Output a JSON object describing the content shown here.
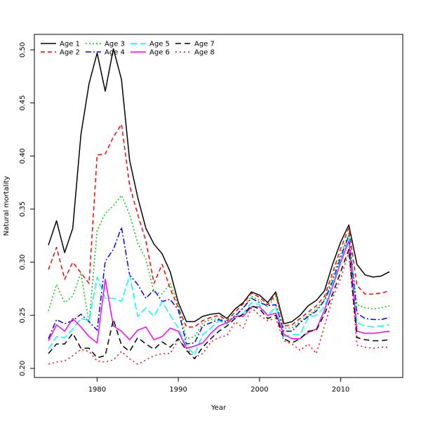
{
  "chart_data": {
    "type": "line",
    "title": "",
    "xlabel": "Year",
    "ylabel": "Natural mortality",
    "xlim": [
      1974,
      2016
    ],
    "ylim": [
      0.2,
      0.5
    ],
    "x_ticks": [
      1980,
      1990,
      2000,
      2010
    ],
    "y_ticks": [
      0.2,
      0.25,
      0.3,
      0.35,
      0.4,
      0.45,
      0.5
    ],
    "grid": false,
    "legend_position": "top-left",
    "x": [
      1974,
      1975,
      1976,
      1977,
      1978,
      1979,
      1980,
      1981,
      1982,
      1983,
      1984,
      1985,
      1986,
      1987,
      1988,
      1989,
      1990,
      1991,
      1992,
      1993,
      1994,
      1995,
      1996,
      1997,
      1998,
      1999,
      2000,
      2001,
      2002,
      2003,
      2004,
      2005,
      2006,
      2007,
      2008,
      2009,
      2010,
      2011,
      2012,
      2013,
      2014,
      2015,
      2016
    ],
    "series": [
      {
        "name": "Age 1",
        "color": "#000000",
        "dash": "solid",
        "values": [
          0.316,
          0.339,
          0.309,
          0.332,
          0.42,
          0.468,
          0.497,
          0.461,
          0.501,
          0.472,
          0.396,
          0.361,
          0.332,
          0.317,
          0.308,
          0.291,
          0.262,
          0.244,
          0.244,
          0.249,
          0.251,
          0.252,
          0.247,
          0.256,
          0.262,
          0.272,
          0.269,
          0.262,
          0.272,
          0.242,
          0.244,
          0.25,
          0.259,
          0.264,
          0.273,
          0.298,
          0.319,
          0.335,
          0.298,
          0.288,
          0.286,
          0.287,
          0.291
        ]
      },
      {
        "name": "Age 2",
        "color": "#FF0000",
        "dash": "6,4",
        "values": [
          0.293,
          0.314,
          0.284,
          0.3,
          0.29,
          0.28,
          0.401,
          0.402,
          0.418,
          0.43,
          0.372,
          0.345,
          0.32,
          0.28,
          0.298,
          0.275,
          0.257,
          0.239,
          0.239,
          0.245,
          0.248,
          0.25,
          0.245,
          0.253,
          0.261,
          0.271,
          0.267,
          0.26,
          0.27,
          0.24,
          0.241,
          0.247,
          0.253,
          0.259,
          0.268,
          0.29,
          0.313,
          0.332,
          0.278,
          0.27,
          0.27,
          0.271,
          0.273
        ]
      },
      {
        "name": "Age 3",
        "color": "#00CD00",
        "dash": "2,3",
        "values": [
          0.254,
          0.279,
          0.262,
          0.268,
          0.29,
          0.243,
          0.33,
          0.346,
          0.353,
          0.363,
          0.345,
          0.318,
          0.303,
          0.272,
          0.27,
          0.28,
          0.26,
          0.228,
          0.23,
          0.243,
          0.246,
          0.247,
          0.244,
          0.25,
          0.257,
          0.268,
          0.264,
          0.258,
          0.268,
          0.238,
          0.238,
          0.244,
          0.25,
          0.256,
          0.265,
          0.286,
          0.308,
          0.327,
          0.26,
          0.257,
          0.256,
          0.257,
          0.259
        ]
      },
      {
        "name": "Age 4",
        "color": "#0000FF",
        "dash": "8,3,2,3",
        "values": [
          0.228,
          0.246,
          0.242,
          0.245,
          0.251,
          0.244,
          0.236,
          0.301,
          0.312,
          0.333,
          0.288,
          0.279,
          0.266,
          0.274,
          0.263,
          0.265,
          0.255,
          0.223,
          0.224,
          0.24,
          0.243,
          0.246,
          0.243,
          0.249,
          0.257,
          0.266,
          0.262,
          0.259,
          0.26,
          0.235,
          0.235,
          0.243,
          0.249,
          0.254,
          0.264,
          0.282,
          0.305,
          0.325,
          0.252,
          0.247,
          0.246,
          0.246,
          0.248
        ]
      },
      {
        "name": "Age 5",
        "color": "#00FFFF",
        "dash": "10,4",
        "values": [
          0.218,
          0.23,
          0.229,
          0.237,
          0.247,
          0.245,
          0.286,
          0.266,
          0.266,
          0.263,
          0.288,
          0.249,
          0.257,
          0.249,
          0.263,
          0.25,
          0.238,
          0.221,
          0.213,
          0.232,
          0.238,
          0.245,
          0.242,
          0.248,
          0.252,
          0.262,
          0.26,
          0.25,
          0.258,
          0.23,
          0.232,
          0.232,
          0.248,
          0.25,
          0.258,
          0.28,
          0.302,
          0.323,
          0.243,
          0.24,
          0.239,
          0.24,
          0.241
        ]
      },
      {
        "name": "Age 6",
        "color": "#FF00FF",
        "dash": "solid",
        "values": [
          0.226,
          0.241,
          0.235,
          0.247,
          0.239,
          0.23,
          0.224,
          0.284,
          0.24,
          0.235,
          0.227,
          0.236,
          0.239,
          0.227,
          0.23,
          0.238,
          0.235,
          0.219,
          0.221,
          0.224,
          0.233,
          0.24,
          0.243,
          0.249,
          0.249,
          0.258,
          0.258,
          0.25,
          0.252,
          0.232,
          0.228,
          0.228,
          0.234,
          0.237,
          0.255,
          0.277,
          0.3,
          0.32,
          0.235,
          0.233,
          0.233,
          0.234,
          0.235
        ]
      },
      {
        "name": "Age 7",
        "color": "#000000",
        "dash": "8,5",
        "values": [
          0.214,
          0.223,
          0.223,
          0.233,
          0.219,
          0.219,
          0.21,
          0.212,
          0.246,
          0.222,
          0.216,
          0.229,
          0.223,
          0.218,
          0.225,
          0.22,
          0.228,
          0.217,
          0.209,
          0.22,
          0.228,
          0.235,
          0.24,
          0.247,
          0.251,
          0.259,
          0.256,
          0.247,
          0.25,
          0.228,
          0.224,
          0.228,
          0.235,
          0.236,
          0.251,
          0.27,
          0.291,
          0.312,
          0.229,
          0.227,
          0.226,
          0.226,
          0.227
        ]
      },
      {
        "name": "Age 8",
        "color": "#FF0000",
        "dash": "2,4",
        "values": [
          0.204,
          0.206,
          0.207,
          0.212,
          0.218,
          0.216,
          0.207,
          0.206,
          0.208,
          0.216,
          0.209,
          0.204,
          0.208,
          0.212,
          0.214,
          0.214,
          0.227,
          0.219,
          0.21,
          0.214,
          0.225,
          0.229,
          0.231,
          0.244,
          0.238,
          0.257,
          0.25,
          0.245,
          0.247,
          0.226,
          0.223,
          0.217,
          0.223,
          0.214,
          0.24,
          0.266,
          0.285,
          0.309,
          0.222,
          0.22,
          0.219,
          0.22,
          0.22
        ]
      }
    ]
  }
}
